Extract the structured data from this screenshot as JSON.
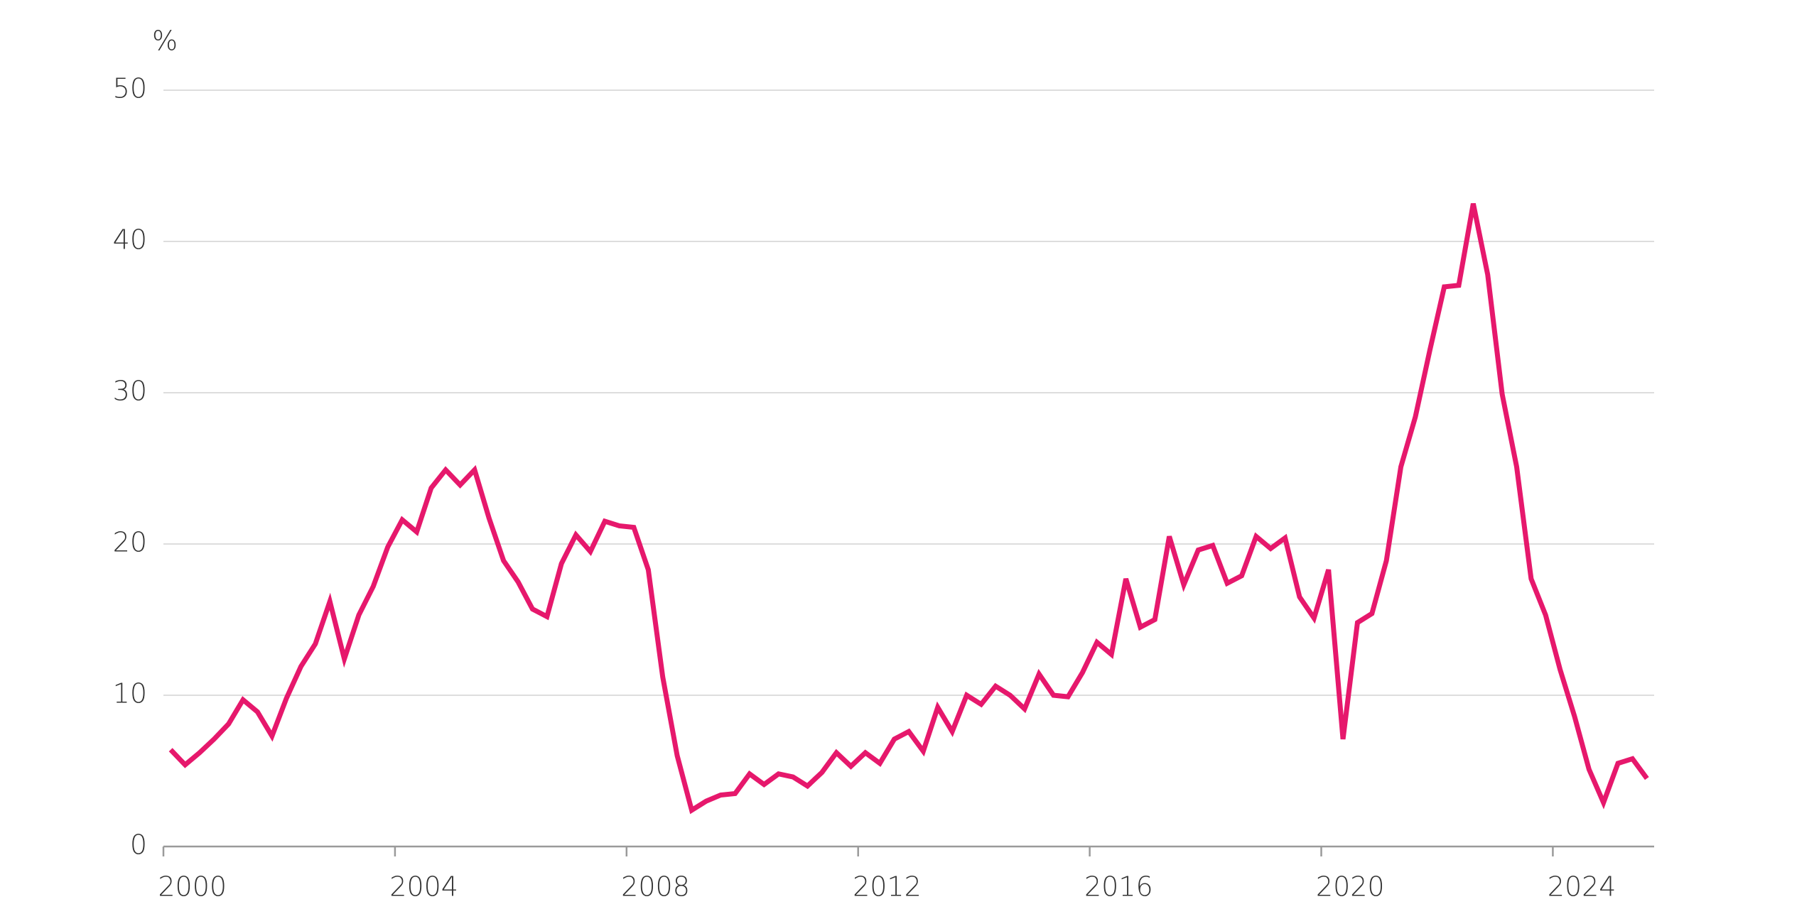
{
  "chart_data": {
    "type": "line",
    "y_unit_label": "%",
    "x": [
      2000.125,
      2000.375,
      2000.625,
      2000.875,
      2001.125,
      2001.375,
      2001.625,
      2001.875,
      2002.125,
      2002.375,
      2002.625,
      2002.875,
      2003.125,
      2003.375,
      2003.625,
      2003.875,
      2004.125,
      2004.375,
      2004.625,
      2004.875,
      2005.125,
      2005.375,
      2005.625,
      2005.875,
      2006.125,
      2006.375,
      2006.625,
      2006.875,
      2007.125,
      2007.375,
      2007.625,
      2007.875,
      2008.125,
      2008.375,
      2008.625,
      2008.875,
      2009.125,
      2009.375,
      2009.625,
      2009.875,
      2010.125,
      2010.375,
      2010.625,
      2010.875,
      2011.125,
      2011.375,
      2011.625,
      2011.875,
      2012.125,
      2012.375,
      2012.625,
      2012.875,
      2013.125,
      2013.375,
      2013.625,
      2013.875,
      2014.125,
      2014.375,
      2014.625,
      2014.875,
      2015.125,
      2015.375,
      2015.625,
      2015.875,
      2016.125,
      2016.375,
      2016.625,
      2016.875,
      2017.125,
      2017.375,
      2017.625,
      2017.875,
      2018.125,
      2018.375,
      2018.625,
      2018.875,
      2019.125,
      2019.375,
      2019.625,
      2019.875,
      2020.125,
      2020.375,
      2020.625,
      2020.875,
      2021.125,
      2021.375,
      2021.625,
      2021.875,
      2022.125,
      2022.375,
      2022.625,
      2022.875,
      2023.125,
      2023.375,
      2023.625,
      2023.875,
      2024.125,
      2024.375,
      2024.625,
      2024.875,
      2025.125,
      2025.375,
      2025.625
    ],
    "series": [
      {
        "color": "#e6186c",
        "values": [
          6.4,
          5.4,
          6.2,
          7.1,
          8.1,
          9.7,
          8.9,
          7.3,
          9.8,
          11.9,
          13.4,
          16.2,
          12.4,
          15.3,
          17.2,
          19.8,
          21.6,
          20.8,
          23.7,
          24.9,
          23.9,
          24.9,
          21.7,
          18.9,
          17.5,
          15.7,
          15.2,
          18.7,
          20.6,
          19.5,
          21.5,
          21.2,
          21.1,
          18.3,
          11.2,
          6.0,
          2.4,
          3.0,
          3.4,
          3.5,
          4.8,
          4.1,
          4.8,
          4.6,
          4.0,
          4.9,
          6.2,
          5.3,
          6.2,
          5.5,
          7.1,
          7.6,
          6.3,
          9.2,
          7.6,
          10.0,
          9.4,
          10.6,
          10.0,
          9.1,
          11.4,
          10.0,
          9.9,
          11.5,
          13.5,
          12.7,
          17.7,
          14.5,
          15.0,
          20.5,
          17.3,
          19.6,
          19.9,
          17.4,
          17.9,
          20.5,
          19.7,
          20.4,
          16.5,
          15.1,
          18.3,
          7.1,
          14.8,
          15.4,
          18.9,
          25.1,
          28.4,
          32.8,
          37.0,
          37.1,
          42.5,
          37.8,
          29.9,
          25.1,
          17.7,
          15.3,
          11.7,
          8.6,
          5.1,
          2.9,
          5.5,
          5.8,
          4.5
        ]
      }
    ],
    "xlim": [
      2000,
      2025.75
    ],
    "xticks": [
      2000,
      2004,
      2008,
      2012,
      2016,
      2020,
      2024
    ],
    "ylim": [
      0,
      50
    ],
    "yticks": [
      0,
      10,
      20,
      30,
      40,
      50
    ],
    "grid": true
  }
}
